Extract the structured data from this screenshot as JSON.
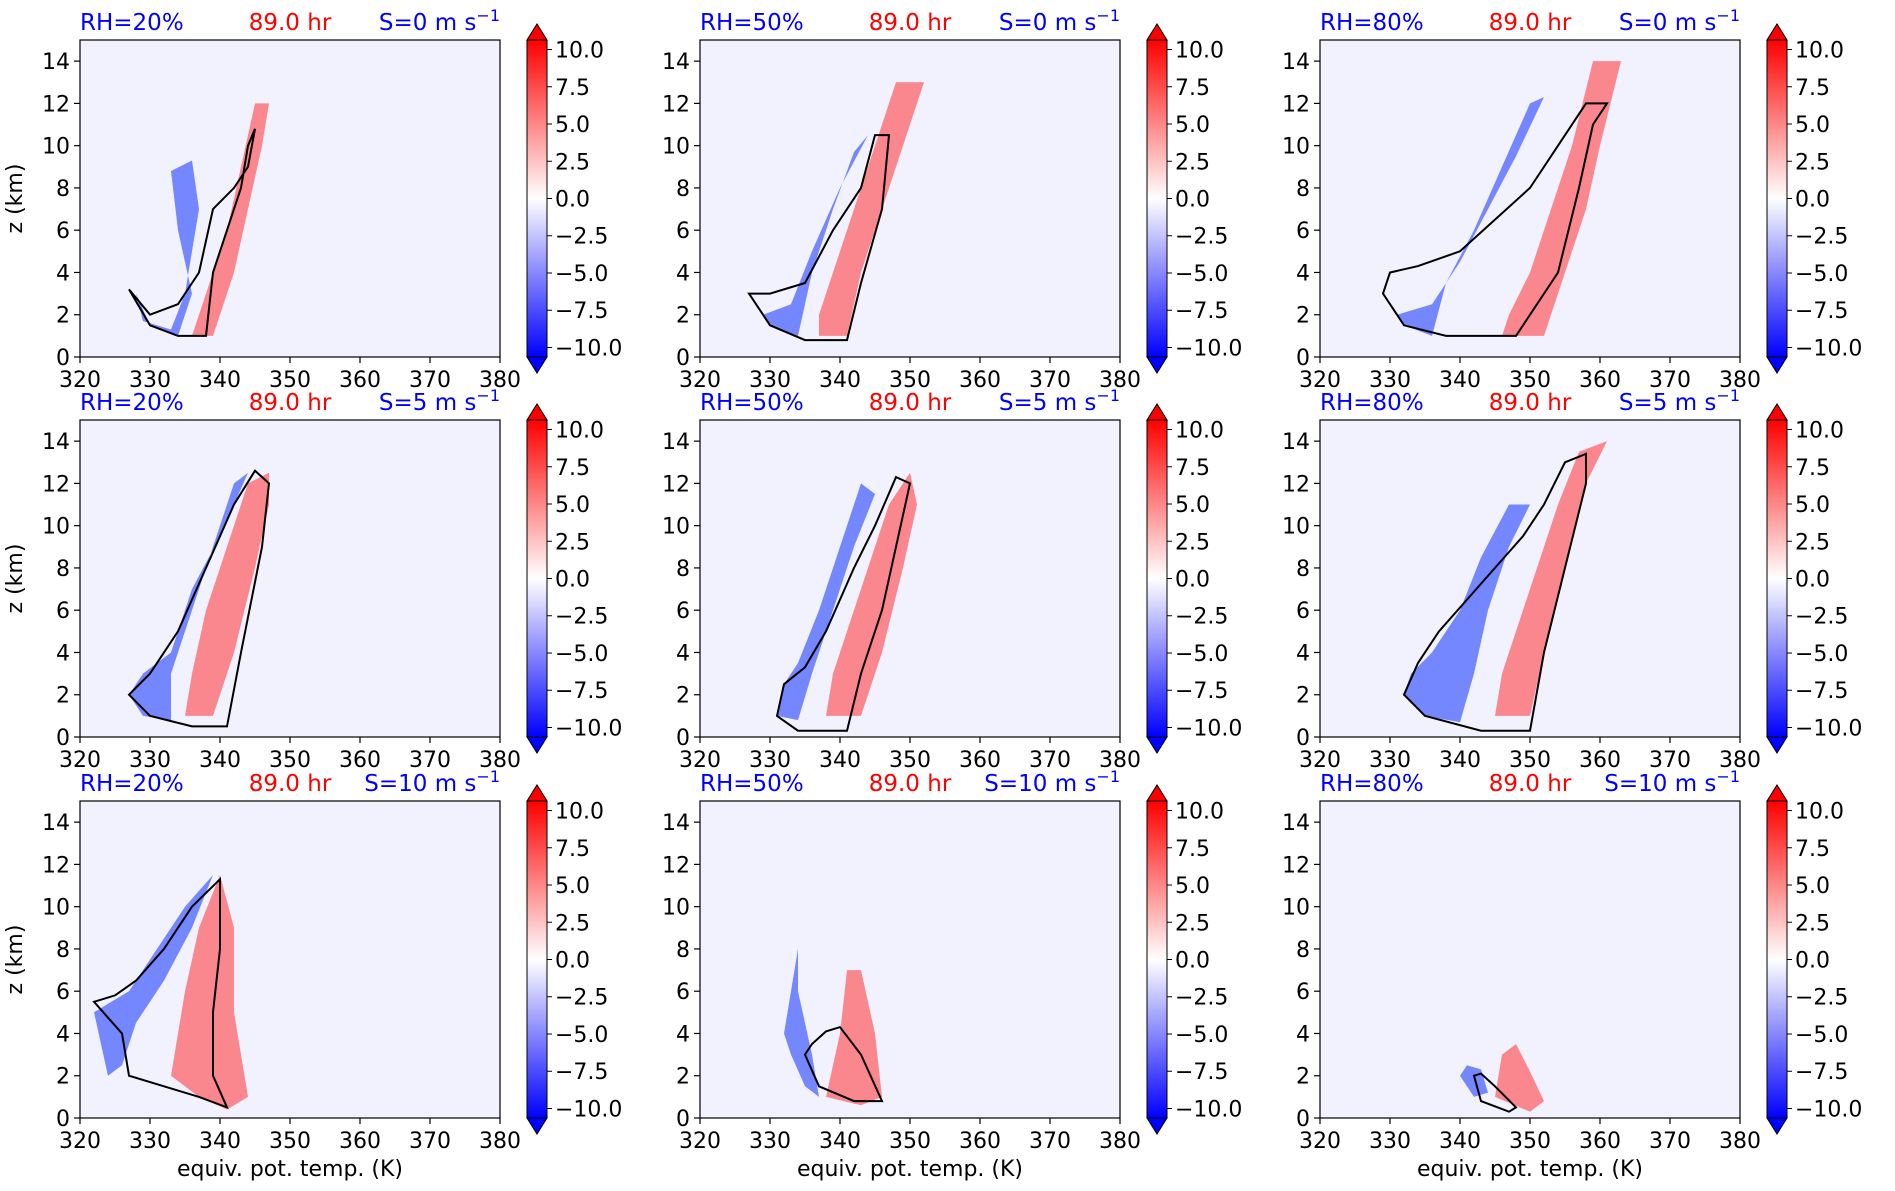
{
  "figure": {
    "time_label": "89.0 hr",
    "xlabel": "equiv. pot. temp. (K)",
    "ylabel": "z (km)",
    "colors": {
      "title_blue": "#0000ff",
      "title_red": "#ff0000",
      "background": "#f2f2ff",
      "contour": "#000000"
    }
  },
  "colorbar": {
    "ticks": [
      "10.0",
      "7.5",
      "5.0",
      "2.5",
      "0.0",
      "−2.5",
      "−5.0",
      "−7.5",
      "−10.0"
    ],
    "range": [
      -10,
      10
    ],
    "colormap": "bwr",
    "extend": "both"
  },
  "chart_data": [
    {
      "type": "contour",
      "rh_label": "RH=20%",
      "shear_label": "S=0 m s",
      "shear_unit_exp": "−1",
      "xlim": [
        320,
        380
      ],
      "ylim": [
        0,
        15
      ],
      "xticks": [
        320,
        330,
        340,
        350,
        360,
        370,
        380
      ],
      "yticks": [
        0,
        2,
        4,
        6,
        8,
        10,
        12,
        14
      ]
    },
    {
      "type": "contour",
      "rh_label": "RH=50%",
      "shear_label": "S=0 m s",
      "shear_unit_exp": "−1",
      "xlim": [
        320,
        380
      ],
      "ylim": [
        0,
        15
      ],
      "xticks": [
        320,
        330,
        340,
        350,
        360,
        370,
        380
      ],
      "yticks": [
        0,
        2,
        4,
        6,
        8,
        10,
        12,
        14
      ]
    },
    {
      "type": "contour",
      "rh_label": "RH=80%",
      "shear_label": "S=0 m s",
      "shear_unit_exp": "−1",
      "xlim": [
        320,
        380
      ],
      "ylim": [
        0,
        15
      ],
      "xticks": [
        320,
        330,
        340,
        350,
        360,
        370,
        380
      ],
      "yticks": [
        0,
        2,
        4,
        6,
        8,
        10,
        12,
        14
      ]
    },
    {
      "type": "contour",
      "rh_label": "RH=20%",
      "shear_label": "S=5 m s",
      "shear_unit_exp": "−1",
      "xlim": [
        320,
        380
      ],
      "ylim": [
        0,
        15
      ],
      "xticks": [
        320,
        330,
        340,
        350,
        360,
        370,
        380
      ],
      "yticks": [
        0,
        2,
        4,
        6,
        8,
        10,
        12,
        14
      ]
    },
    {
      "type": "contour",
      "rh_label": "RH=50%",
      "shear_label": "S=5 m s",
      "shear_unit_exp": "−1",
      "xlim": [
        320,
        380
      ],
      "ylim": [
        0,
        15
      ],
      "xticks": [
        320,
        330,
        340,
        350,
        360,
        370,
        380
      ],
      "yticks": [
        0,
        2,
        4,
        6,
        8,
        10,
        12,
        14
      ]
    },
    {
      "type": "contour",
      "rh_label": "RH=80%",
      "shear_label": "S=5 m s",
      "shear_unit_exp": "−1",
      "xlim": [
        320,
        380
      ],
      "ylim": [
        0,
        15
      ],
      "xticks": [
        320,
        330,
        340,
        350,
        360,
        370,
        380
      ],
      "yticks": [
        0,
        2,
        4,
        6,
        8,
        10,
        12,
        14
      ]
    },
    {
      "type": "contour",
      "rh_label": "RH=20%",
      "shear_label": "S=10 m s",
      "shear_unit_exp": "−1",
      "xlim": [
        320,
        380
      ],
      "ylim": [
        0,
        15
      ],
      "xticks": [
        320,
        330,
        340,
        350,
        360,
        370,
        380
      ],
      "yticks": [
        0,
        2,
        4,
        6,
        8,
        10,
        12,
        14
      ]
    },
    {
      "type": "contour",
      "rh_label": "RH=50%",
      "shear_label": "S=10 m s",
      "shear_unit_exp": "−1",
      "xlim": [
        320,
        380
      ],
      "ylim": [
        0,
        15
      ],
      "xticks": [
        320,
        330,
        340,
        350,
        360,
        370,
        380
      ],
      "yticks": [
        0,
        2,
        4,
        6,
        8,
        10,
        12,
        14
      ]
    },
    {
      "type": "contour",
      "rh_label": "RH=80%",
      "shear_label": "S=10 m s",
      "shear_unit_exp": "−1",
      "xlim": [
        320,
        380
      ],
      "ylim": [
        0,
        15
      ],
      "xticks": [
        320,
        330,
        340,
        350,
        360,
        370,
        380
      ],
      "yticks": [
        0,
        2,
        4,
        6,
        8,
        10,
        12,
        14
      ]
    }
  ]
}
